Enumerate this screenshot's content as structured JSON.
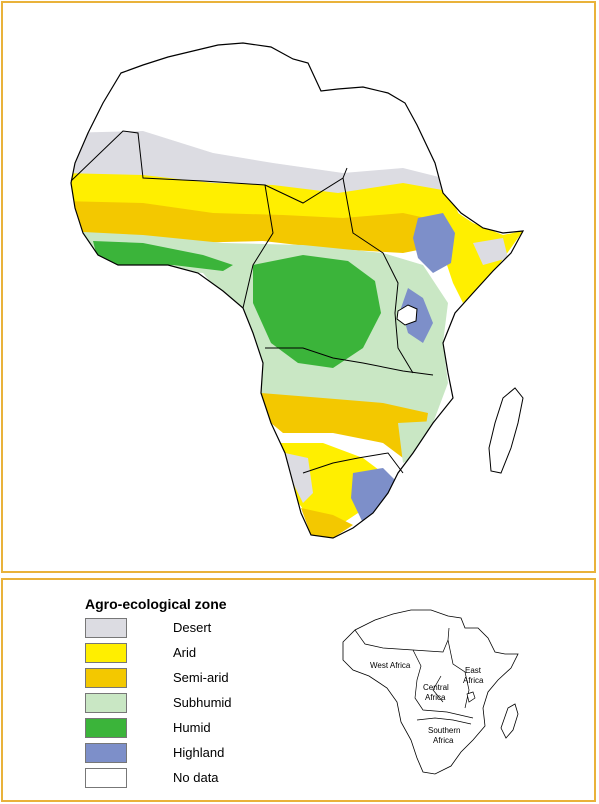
{
  "legend": {
    "title": "Agro-ecological zone",
    "items": [
      {
        "label": "Desert",
        "color": "#dcdce2"
      },
      {
        "label": "Arid",
        "color": "#ffef00"
      },
      {
        "label": "Semi-arid",
        "color": "#f3c800"
      },
      {
        "label": "Subhumid",
        "color": "#c9e7c4"
      },
      {
        "label": "Humid",
        "color": "#3bb43a"
      },
      {
        "label": "Highland",
        "color": "#7d8fc9"
      },
      {
        "label": "No data",
        "color": "#ffffff"
      }
    ]
  },
  "inset": {
    "regions": [
      {
        "label": "West Africa"
      },
      {
        "label": "East"
      },
      {
        "label": "Africa"
      },
      {
        "label": "Central"
      },
      {
        "label": "Africa"
      },
      {
        "label": "Southern"
      },
      {
        "label": "Africa"
      }
    ]
  },
  "colors": {
    "frame": "#e9b23a",
    "outline": "#000000"
  }
}
